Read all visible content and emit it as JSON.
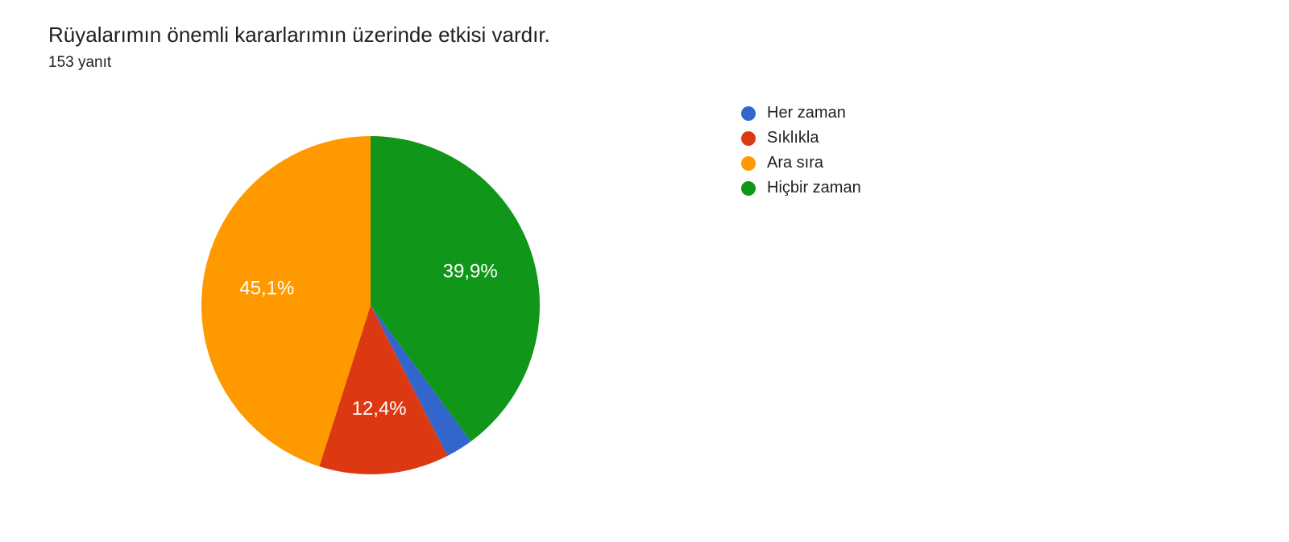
{
  "title": "Rüyalarımın önemli kararlarımın üzerinde etkisi vardır.",
  "subtitle": "153 yanıt",
  "chart": {
    "type": "pie",
    "background_color": "#ffffff",
    "label_color": "#ffffff",
    "label_fontsize": 24,
    "title_fontsize": 26,
    "subtitle_fontsize": 19,
    "legend_fontsize": 20,
    "legend_text_color": "#202124",
    "start_angle_deg": -90,
    "slices": [
      {
        "label": "Hiçbir zaman",
        "value": 39.9,
        "display": "39,9%",
        "color": "#109618",
        "show_label": true
      },
      {
        "label": "Her zaman",
        "value": 2.6,
        "display": "",
        "color": "#3366cc",
        "show_label": false
      },
      {
        "label": "Sıklıkla",
        "value": 12.4,
        "display": "12,4%",
        "color": "#dc3912",
        "show_label": true
      },
      {
        "label": "Ara sıra",
        "value": 45.1,
        "display": "45,1%",
        "color": "#ff9900",
        "show_label": true
      }
    ],
    "legend_order": [
      "Her zaman",
      "Sıklıkla",
      "Ara sıra",
      "Hiçbir zaman"
    ]
  }
}
